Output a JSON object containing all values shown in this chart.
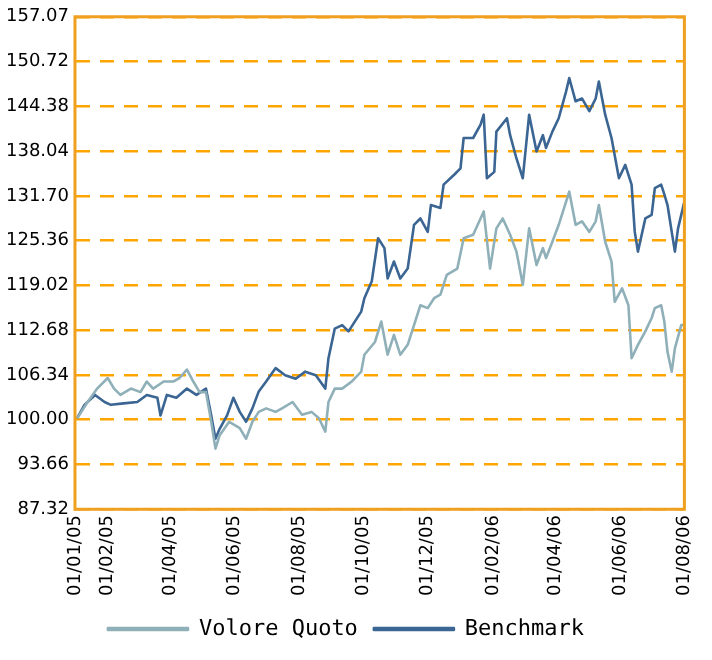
{
  "chart_data": {
    "type": "line",
    "legend": "bottom",
    "grid": "y",
    "marker": "none",
    "line_style": "solid",
    "xlim": [
      "2005-01-01",
      "2006-08-01"
    ],
    "xticks": [
      {
        "value": "2005-01-01",
        "label": "01/01/05"
      },
      {
        "value": "2005-02-01",
        "label": "01/02/05"
      },
      {
        "value": "2005-04-01",
        "label": "01/04/05"
      },
      {
        "value": "2005-06-01",
        "label": "01/06/05"
      },
      {
        "value": "2005-08-01",
        "label": "01/08/05"
      },
      {
        "value": "2005-10-01",
        "label": "01/10/05"
      },
      {
        "value": "2005-12-01",
        "label": "01/12/05"
      },
      {
        "value": "2006-02-01",
        "label": "01/02/06"
      },
      {
        "value": "2006-04-01",
        "label": "01/04/06"
      },
      {
        "value": "2006-06-01",
        "label": "01/06/06"
      },
      {
        "value": "2006-08-01",
        "label": "01/08/06"
      }
    ],
    "ylim": [
      87.32,
      157.07
    ],
    "yticks": [
      87.32,
      93.66,
      {
        "value": 100,
        "label": "100.00"
      },
      106.34,
      112.68,
      119.02,
      125.36,
      {
        "value": 131.7,
        "label": "131.70"
      },
      138.04,
      144.38,
      150.72,
      157.07
    ],
    "series": [
      {
        "name": "Volore Quoto",
        "color": "#8fb0b8",
        "x": [
          "2005-01-03",
          "2005-01-13",
          "2005-01-22",
          "2005-02-01",
          "2005-02-07",
          "2005-02-13",
          "2005-02-23",
          "2005-03-04",
          "2005-03-10",
          "2005-03-16",
          "2005-03-26",
          "2005-04-04",
          "2005-04-10",
          "2005-04-17",
          "2005-04-23",
          "2005-04-29",
          "2005-05-05",
          "2005-05-10",
          "2005-05-14",
          "2005-05-18",
          "2005-05-27",
          "2005-06-06",
          "2005-06-12",
          "2005-06-18",
          "2005-06-24",
          "2005-07-01",
          "2005-07-10",
          "2005-07-16",
          "2005-07-26",
          "2005-08-04",
          "2005-08-13",
          "2005-08-20",
          "2005-08-26",
          "2005-08-29",
          "2005-09-04",
          "2005-09-11",
          "2005-09-20",
          "2005-09-29",
          "2005-10-02",
          "2005-10-12",
          "2005-10-18",
          "2005-10-24",
          "2005-10-30",
          "2005-11-05",
          "2005-11-12",
          "2005-11-18",
          "2005-11-24",
          "2005-12-01",
          "2005-12-07",
          "2005-12-13",
          "2005-12-19",
          "2005-12-29",
          "2006-01-04",
          "2006-01-13",
          "2006-01-20",
          "2006-01-23",
          "2006-01-29",
          "2006-02-04",
          "2006-02-10",
          "2006-02-17",
          "2006-02-23",
          "2006-03-01",
          "2006-03-07",
          "2006-03-14",
          "2006-03-20",
          "2006-03-23",
          "2006-03-29",
          "2006-04-04",
          "2006-04-14",
          "2006-04-20",
          "2006-04-26",
          "2006-05-03",
          "2006-05-09",
          "2006-05-12",
          "2006-05-18",
          "2006-05-24",
          "2006-05-27",
          "2006-06-03",
          "2006-06-09",
          "2006-06-12",
          "2006-06-18",
          "2006-06-25",
          "2006-07-01",
          "2006-07-04",
          "2006-07-10",
          "2006-07-13",
          "2006-07-16",
          "2006-07-20",
          "2006-07-23",
          "2006-07-29",
          "2006-08-01"
        ],
        "values": [
          100.2,
          102.5,
          104.4,
          105.9,
          104.4,
          103.5,
          104.4,
          103.9,
          105.4,
          104.4,
          105.4,
          105.4,
          105.9,
          107.1,
          105.4,
          103.9,
          103.9,
          99.7,
          95.9,
          97.8,
          99.7,
          98.8,
          97.3,
          99.7,
          101.1,
          101.6,
          101.1,
          101.6,
          102.5,
          100.7,
          101.1,
          100.2,
          98.3,
          102.5,
          104.4,
          104.4,
          105.4,
          106.8,
          109.2,
          111.0,
          113.9,
          109.2,
          112.0,
          109.2,
          110.6,
          113.4,
          116.2,
          115.8,
          117.2,
          117.7,
          120.5,
          121.4,
          125.7,
          126.2,
          128.5,
          129.5,
          121.4,
          127.1,
          128.5,
          126.2,
          123.8,
          119.1,
          127.1,
          121.9,
          124.3,
          122.9,
          125.2,
          127.6,
          132.3,
          127.6,
          128.1,
          126.6,
          128.1,
          130.4,
          125.2,
          122.4,
          116.7,
          118.6,
          116.2,
          108.7,
          110.6,
          112.5,
          114.4,
          115.8,
          116.2,
          113.9,
          109.6,
          106.8,
          110.1,
          113.4,
          113.4
        ]
      },
      {
        "name": "Benchmark",
        "color": "#3b6592",
        "x": [
          "2005-01-03",
          "2005-01-10",
          "2005-01-20",
          "2005-01-29",
          "2005-02-04",
          "2005-02-16",
          "2005-03-01",
          "2005-03-10",
          "2005-03-20",
          "2005-03-23",
          "2005-03-29",
          "2005-04-07",
          "2005-04-17",
          "2005-04-26",
          "2005-05-05",
          "2005-05-10",
          "2005-05-14",
          "2005-05-18",
          "2005-05-25",
          "2005-05-31",
          "2005-06-06",
          "2005-06-12",
          "2005-06-18",
          "2005-06-24",
          "2005-07-01",
          "2005-07-10",
          "2005-07-19",
          "2005-07-29",
          "2005-08-07",
          "2005-08-17",
          "2005-08-26",
          "2005-08-29",
          "2005-09-04",
          "2005-09-11",
          "2005-09-17",
          "2005-09-29",
          "2005-10-02",
          "2005-10-09",
          "2005-10-15",
          "2005-10-21",
          "2005-10-24",
          "2005-10-30",
          "2005-11-05",
          "2005-11-12",
          "2005-11-18",
          "2005-11-24",
          "2005-12-01",
          "2005-12-04",
          "2005-12-13",
          "2005-12-16",
          "2005-12-26",
          "2006-01-01",
          "2006-01-04",
          "2006-01-13",
          "2006-01-20",
          "2006-01-23",
          "2006-01-26",
          "2006-02-02",
          "2006-02-04",
          "2006-02-14",
          "2006-02-17",
          "2006-02-23",
          "2006-03-01",
          "2006-03-07",
          "2006-03-14",
          "2006-03-20",
          "2006-03-23",
          "2006-03-29",
          "2006-04-04",
          "2006-04-11",
          "2006-04-14",
          "2006-04-20",
          "2006-04-26",
          "2006-05-03",
          "2006-05-09",
          "2006-05-12",
          "2006-05-18",
          "2006-05-24",
          "2006-05-31",
          "2006-06-06",
          "2006-06-12",
          "2006-06-15",
          "2006-06-18",
          "2006-06-25",
          "2006-07-01",
          "2006-07-04",
          "2006-07-10",
          "2006-07-13",
          "2006-07-16",
          "2006-07-20",
          "2006-07-23",
          "2006-07-26",
          "2006-08-01"
        ],
        "values": [
          100.2,
          102.1,
          103.5,
          102.5,
          102.1,
          102.3,
          102.5,
          103.5,
          103.1,
          100.6,
          103.5,
          103.1,
          104.4,
          103.5,
          104.4,
          100.6,
          97.3,
          98.7,
          100.6,
          103.1,
          101.1,
          99.7,
          101.6,
          104.0,
          105.4,
          107.3,
          106.3,
          105.8,
          106.8,
          106.3,
          104.4,
          108.7,
          112.9,
          113.4,
          112.5,
          115.3,
          117.2,
          119.6,
          125.7,
          124.3,
          120.0,
          122.4,
          120.0,
          121.4,
          127.6,
          128.5,
          126.6,
          130.4,
          130.0,
          133.3,
          134.7,
          135.6,
          139.9,
          139.9,
          141.8,
          143.2,
          134.2,
          135.1,
          140.8,
          142.7,
          140.3,
          137.0,
          134.2,
          143.2,
          138.0,
          140.3,
          138.5,
          140.8,
          142.7,
          146.5,
          148.4,
          145.1,
          145.5,
          143.7,
          145.5,
          147.9,
          143.2,
          139.9,
          134.2,
          136.1,
          133.3,
          126.6,
          123.8,
          128.5,
          129.0,
          132.8,
          133.3,
          131.9,
          130.4,
          126.6,
          123.8,
          127.1,
          130.9
        ]
      }
    ]
  }
}
